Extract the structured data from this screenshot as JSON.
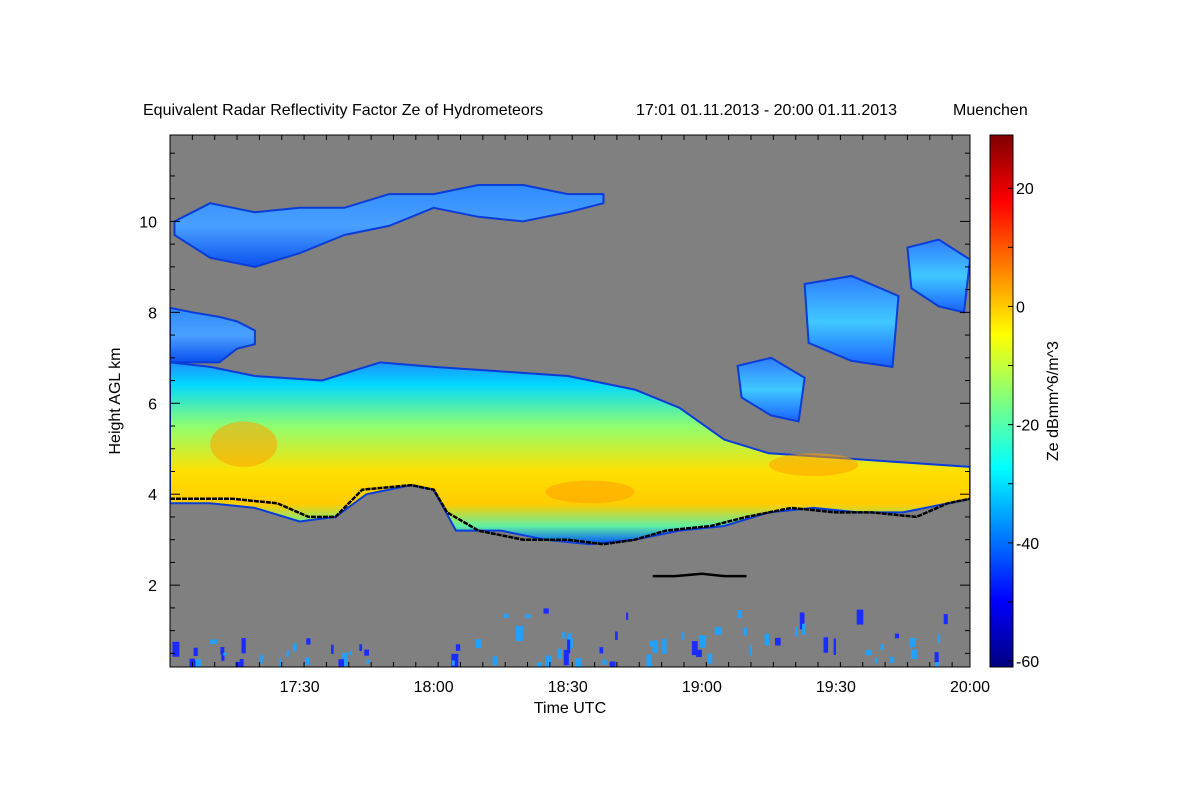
{
  "chart_data": {
    "type": "heatmap",
    "title": "Equivalent Radar Reflectivity Factor Ze of Hydrometeors",
    "period": "17:01 01.11.2013 - 20:00 01.11.2013",
    "location": "Muenchen",
    "xlabel": "Time UTC",
    "ylabel": "Height AGL km",
    "colorbar_label": "Ze dBmm^6/m^3",
    "xlim_minutes_utc": [
      1021,
      1200
    ],
    "ylim_km": [
      0.2,
      11.9
    ],
    "x_ticks": [
      {
        "minute": 1050,
        "label": "17:30"
      },
      {
        "minute": 1080,
        "label": "18:00"
      },
      {
        "minute": 1110,
        "label": "18:30"
      },
      {
        "minute": 1140,
        "label": "19:00"
      },
      {
        "minute": 1170,
        "label": "19:30"
      },
      {
        "minute": 1200,
        "label": "20:00"
      }
    ],
    "y_ticks": [
      {
        "km": 2,
        "label": "2"
      },
      {
        "km": 4,
        "label": "4"
      },
      {
        "km": 6,
        "label": "6"
      },
      {
        "km": 8,
        "label": "8"
      },
      {
        "km": 10,
        "label": "10"
      }
    ],
    "colorbar": {
      "range": [
        -61,
        29
      ],
      "ticks": [
        {
          "value": 20,
          "label": "20"
        },
        {
          "value": 0,
          "label": "0"
        },
        {
          "value": -20,
          "label": "-20"
        },
        {
          "value": -40,
          "label": "-40"
        },
        {
          "value": -60,
          "label": "-60"
        }
      ],
      "colormap": "jet"
    },
    "background_color": "#808080",
    "layers": [
      {
        "name": "upper cirrus",
        "start_minute": 1022,
        "end_minute": 1118,
        "dbz": -40,
        "top_km": [
          [
            1022,
            10.0
          ],
          [
            1030,
            10.4
          ],
          [
            1040,
            10.2
          ],
          [
            1050,
            10.3
          ],
          [
            1060,
            10.3
          ],
          [
            1070,
            10.6
          ],
          [
            1080,
            10.6
          ],
          [
            1090,
            10.8
          ],
          [
            1100,
            10.8
          ],
          [
            1110,
            10.6
          ],
          [
            1118,
            10.6
          ]
        ],
        "bottom_km": [
          [
            1022,
            9.7
          ],
          [
            1030,
            9.2
          ],
          [
            1040,
            9.0
          ],
          [
            1050,
            9.3
          ],
          [
            1060,
            9.7
          ],
          [
            1070,
            9.9
          ],
          [
            1080,
            10.3
          ],
          [
            1090,
            10.1
          ],
          [
            1100,
            10.0
          ],
          [
            1110,
            10.2
          ],
          [
            1118,
            10.4
          ]
        ]
      },
      {
        "name": "mid cloud fragments",
        "start_minute": 1021,
        "end_minute": 1040,
        "dbz": -34,
        "top_km": [
          [
            1021,
            8.1
          ],
          [
            1026,
            8.0
          ],
          [
            1032,
            7.9
          ],
          [
            1036,
            7.8
          ],
          [
            1040,
            7.6
          ]
        ],
        "bottom_km": [
          [
            1021,
            6.9
          ],
          [
            1026,
            6.9
          ],
          [
            1032,
            6.9
          ],
          [
            1036,
            7.2
          ],
          [
            1040,
            7.3
          ]
        ]
      },
      {
        "name": "main stratiform layer",
        "start_minute": 1021,
        "end_minute": 1200,
        "dbz": -15,
        "top_km": [
          [
            1021,
            6.9
          ],
          [
            1030,
            6.8
          ],
          [
            1040,
            6.6
          ],
          [
            1055,
            6.5
          ],
          [
            1068,
            6.9
          ],
          [
            1080,
            6.8
          ],
          [
            1095,
            6.7
          ],
          [
            1110,
            6.6
          ],
          [
            1125,
            6.3
          ],
          [
            1135,
            5.9
          ],
          [
            1145,
            5.2
          ],
          [
            1155,
            4.9
          ],
          [
            1170,
            4.8
          ],
          [
            1185,
            4.7
          ],
          [
            1200,
            4.6
          ]
        ],
        "bottom_km": [
          [
            1021,
            3.8
          ],
          [
            1030,
            3.8
          ],
          [
            1040,
            3.7
          ],
          [
            1050,
            3.4
          ],
          [
            1058,
            3.5
          ],
          [
            1065,
            4.0
          ],
          [
            1075,
            4.2
          ],
          [
            1080,
            4.1
          ],
          [
            1085,
            3.2
          ],
          [
            1095,
            3.2
          ],
          [
            1105,
            3.0
          ],
          [
            1115,
            2.9
          ],
          [
            1125,
            3.0
          ],
          [
            1135,
            3.2
          ],
          [
            1145,
            3.3
          ],
          [
            1155,
            3.6
          ],
          [
            1165,
            3.7
          ],
          [
            1175,
            3.6
          ],
          [
            1185,
            3.6
          ],
          [
            1195,
            3.8
          ],
          [
            1200,
            3.9
          ]
        ]
      },
      {
        "name": "isolated cirrus patches",
        "start_minute": 1150,
        "end_minute": 1200,
        "dbz": -35,
        "patches": [
          {
            "start_minute": 1148,
            "end_minute": 1163,
            "top_km": 7.0,
            "bottom_km": 5.6
          },
          {
            "start_minute": 1163,
            "end_minute": 1184,
            "top_km": 8.8,
            "bottom_km": 6.8
          },
          {
            "start_minute": 1186,
            "end_minute": 1200,
            "top_km": 9.6,
            "bottom_km": 8.0
          }
        ]
      }
    ],
    "melting_layer_line_km": [
      [
        1021,
        3.9
      ],
      [
        1035,
        3.9
      ],
      [
        1045,
        3.8
      ],
      [
        1052,
        3.5
      ],
      [
        1058,
        3.5
      ],
      [
        1064,
        4.1
      ],
      [
        1075,
        4.2
      ],
      [
        1080,
        4.1
      ],
      [
        1083,
        3.6
      ],
      [
        1090,
        3.2
      ],
      [
        1100,
        3.0
      ],
      [
        1110,
        3.0
      ],
      [
        1118,
        2.9
      ],
      [
        1125,
        3.0
      ],
      [
        1132,
        3.2
      ],
      [
        1142,
        3.3
      ],
      [
        1150,
        3.5
      ],
      [
        1160,
        3.7
      ],
      [
        1170,
        3.6
      ],
      [
        1178,
        3.6
      ],
      [
        1188,
        3.5
      ],
      [
        1195,
        3.8
      ],
      [
        1200,
        3.9
      ]
    ],
    "cloud_base_trace_km": [
      [
        1129,
        2.2
      ],
      [
        1134,
        2.2
      ],
      [
        1140,
        2.25
      ],
      [
        1145,
        2.2
      ],
      [
        1150,
        2.2
      ]
    ],
    "low_clutter_km": [
      0.3,
      1.5
    ]
  }
}
